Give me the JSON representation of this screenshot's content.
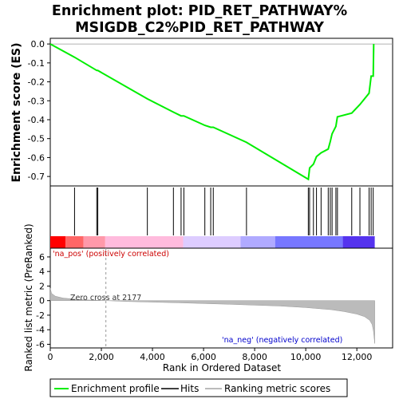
{
  "chart_data": {
    "type": "line",
    "title_line1": "Enrichment plot: PID_RET_PATHWAY%",
    "title_line2": "MSIGDB_C2%PID_RET_PATHWAY",
    "es_panel": {
      "ylabel": "Enrichment score (ES)",
      "ylim": [
        -0.75,
        0.03
      ],
      "yticks": [
        "0.0",
        "-0.1",
        "-0.2",
        "-0.3",
        "-0.4",
        "-0.5",
        "-0.6",
        "-0.7"
      ],
      "ytick_values": [
        0.0,
        -0.1,
        -0.2,
        -0.3,
        -0.4,
        -0.5,
        -0.6,
        -0.7
      ],
      "x": [
        0,
        950,
        1820,
        1860,
        3800,
        4820,
        5120,
        5230,
        6050,
        6280,
        6380,
        7680,
        10100,
        10150,
        10300,
        10420,
        10600,
        10880,
        10960,
        11030,
        11180,
        11240,
        11800,
        12120,
        12480,
        12560,
        12640,
        12660
      ],
      "es": [
        0.0,
        -0.07,
        -0.14,
        -0.14,
        -0.29,
        -0.36,
        -0.38,
        -0.38,
        -0.43,
        -0.44,
        -0.44,
        -0.52,
        -0.715,
        -0.655,
        -0.635,
        -0.595,
        -0.575,
        -0.555,
        -0.515,
        -0.475,
        -0.435,
        -0.385,
        -0.365,
        -0.32,
        -0.26,
        -0.17,
        -0.17,
        0.0
      ]
    },
    "hits": [
      950,
      1820,
      1860,
      3800,
      4820,
      5120,
      5230,
      6050,
      6280,
      6380,
      7680,
      10100,
      10150,
      10300,
      10420,
      10600,
      10880,
      10960,
      11030,
      11180,
      11240,
      11800,
      12120,
      12480,
      12560,
      12640
    ],
    "rank_bar": {
      "colors": [
        "#ff0000",
        "#ff6666",
        "#ff99aa",
        "#ffbbdd",
        "#ddccff",
        "#b0aaff",
        "#7777ff",
        "#5533ee",
        "#2200cc"
      ],
      "stops": [
        0,
        600,
        1300,
        2150,
        5200,
        7450,
        8800,
        11450,
        12700
      ]
    },
    "metric_panel": {
      "ylabel": "Ranked list metric (PreRanked)",
      "ylim": [
        -6.5,
        7.2
      ],
      "yticks": [
        "6",
        "4",
        "2",
        "0",
        "-2",
        "-4",
        "-6"
      ],
      "ytick_values": [
        6,
        4,
        2,
        0,
        -2,
        -4,
        -6
      ],
      "profile_x": [
        0,
        50,
        200,
        500,
        900,
        1400,
        2177,
        3000,
        5000,
        7000,
        9000,
        10000,
        11000,
        11500,
        12000,
        12300,
        12500,
        12600,
        12650,
        12700
      ],
      "profile_y": [
        1.7,
        1.0,
        0.6,
        0.35,
        0.22,
        0.1,
        0.0,
        -0.12,
        -0.3,
        -0.5,
        -0.75,
        -0.95,
        -1.25,
        -1.5,
        -1.85,
        -2.2,
        -2.7,
        -3.3,
        -4.2,
        -5.9
      ],
      "pos_label": "'na_pos' (positively correlated)",
      "neg_label": "'na_neg' (negatively correlated)",
      "zero_cross_label": "Zero cross at 2177",
      "zero_cross": 2177
    },
    "xlabel": "Rank in Ordered Dataset",
    "xlim": [
      0,
      13400
    ],
    "xticks": [
      "0",
      "2,000",
      "4,000",
      "6,000",
      "8,000",
      "10,000",
      "12,000"
    ],
    "xtick_values": [
      0,
      2000,
      4000,
      6000,
      8000,
      10000,
      12000
    ],
    "colors": {
      "es_line": "#00ee00",
      "hits": "#000000",
      "metric_fill": "#bbbbbb"
    },
    "legend": {
      "placement": "bottom",
      "entries": [
        "Enrichment profile",
        "Hits",
        "Ranking metric scores"
      ]
    }
  }
}
